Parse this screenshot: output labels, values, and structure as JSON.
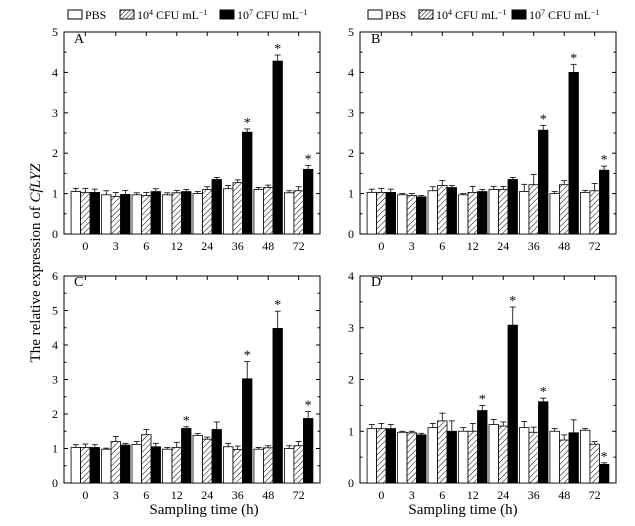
{
  "figure": {
    "ylabel_prefix": "The relative expression of ",
    "ylabel_gene": "CfLYZ",
    "xlabel": "Sampling time (h)"
  },
  "colors": {
    "pbs": "#ffffff",
    "low": "#ffffff",
    "high": "#000000",
    "axis": "#000000"
  },
  "chart_data": [
    {
      "type": "bar",
      "panel": "A",
      "categories": [
        "0",
        "3",
        "6",
        "12",
        "24",
        "36",
        "48",
        "72"
      ],
      "ylim": [
        0,
        5
      ],
      "yticks": [
        "0",
        "1",
        "2",
        "3",
        "4",
        "5"
      ],
      "legend": {
        "pbs": "PBS",
        "low_base": "10",
        "low_exp": "4",
        "low_unit": " CFU mL",
        "low_unit_exp": "−1",
        "high_base": "10",
        "high_exp": "7",
        "high_unit": " CFU mL",
        "high_unit_exp": "−1"
      },
      "series": [
        {
          "name": "PBS",
          "values": [
            1.05,
            0.97,
            0.97,
            0.97,
            1.0,
            1.12,
            1.1,
            1.02
          ],
          "errors": [
            0.08,
            0.1,
            0.05,
            0.05,
            0.05,
            0.08,
            0.05,
            0.05
          ]
        },
        {
          "name": "10^4 CFU mL-1",
          "values": [
            1.03,
            0.93,
            0.95,
            1.02,
            1.1,
            1.27,
            1.15,
            1.07
          ],
          "errors": [
            0.1,
            0.1,
            0.08,
            0.06,
            0.07,
            0.07,
            0.06,
            0.1
          ]
        },
        {
          "name": "10^7 CFU mL-1",
          "values": [
            1.03,
            0.98,
            1.05,
            1.05,
            1.35,
            2.52,
            4.28,
            1.6
          ],
          "errors": [
            0.08,
            0.1,
            0.07,
            0.05,
            0.05,
            0.08,
            0.15,
            0.1
          ]
        }
      ],
      "significant": [
        5,
        6,
        7
      ],
      "star": "*"
    },
    {
      "type": "bar",
      "panel": "B",
      "categories": [
        "0",
        "3",
        "6",
        "12",
        "24",
        "36",
        "48",
        "72"
      ],
      "ylim": [
        0,
        5
      ],
      "yticks": [
        "0",
        "1",
        "2",
        "3",
        "4",
        "5"
      ],
      "legend": {
        "pbs": "PBS",
        "low_base": "10",
        "low_exp": "4",
        "low_unit": " CFU mL",
        "low_unit_exp": "−1",
        "high_base": "10",
        "high_exp": "7",
        "high_unit": " CFU mL",
        "high_unit_exp": "−1"
      },
      "series": [
        {
          "name": "PBS",
          "values": [
            1.03,
            0.97,
            1.07,
            0.97,
            1.1,
            1.05,
            1.0,
            1.03
          ],
          "errors": [
            0.08,
            0.03,
            0.1,
            0.03,
            0.08,
            0.18,
            0.05,
            0.05
          ]
        },
        {
          "name": "10^4 CFU mL-1",
          "values": [
            1.03,
            0.95,
            1.2,
            1.03,
            1.1,
            1.22,
            1.22,
            1.07
          ],
          "errors": [
            0.1,
            0.05,
            0.12,
            0.15,
            0.08,
            0.25,
            0.1,
            0.18
          ]
        },
        {
          "name": "10^7 CFU mL-1",
          "values": [
            1.03,
            0.92,
            1.15,
            1.05,
            1.35,
            2.57,
            4.0,
            1.58
          ],
          "errors": [
            0.08,
            0.03,
            0.05,
            0.05,
            0.05,
            0.12,
            0.2,
            0.1
          ]
        }
      ],
      "significant": [
        5,
        6,
        7
      ],
      "star": "*"
    },
    {
      "type": "bar",
      "panel": "C",
      "categories": [
        "0",
        "3",
        "6",
        "12",
        "24",
        "36",
        "48",
        "72"
      ],
      "ylim": [
        0,
        6
      ],
      "yticks": [
        "0",
        "1",
        "2",
        "3",
        "4",
        "5",
        "6"
      ],
      "series": [
        {
          "name": "PBS",
          "values": [
            1.03,
            0.98,
            1.12,
            0.98,
            1.38,
            1.05,
            0.98,
            1.0
          ],
          "errors": [
            0.08,
            0.03,
            0.08,
            0.05,
            0.05,
            0.1,
            0.05,
            0.08
          ]
        },
        {
          "name": "10^4 CFU mL-1",
          "values": [
            1.03,
            1.2,
            1.4,
            1.03,
            1.27,
            0.97,
            1.02,
            1.08
          ],
          "errors": [
            0.1,
            0.15,
            0.15,
            0.15,
            0.06,
            0.1,
            0.06,
            0.12
          ]
        },
        {
          "name": "10^7 CFU mL-1",
          "values": [
            1.03,
            1.1,
            1.05,
            1.58,
            1.55,
            3.02,
            4.48,
            1.87
          ],
          "errors": [
            0.08,
            0.05,
            0.1,
            0.05,
            0.22,
            0.5,
            0.5,
            0.2
          ]
        }
      ],
      "significant": [
        3,
        5,
        6,
        7
      ],
      "star": "*"
    },
    {
      "type": "bar",
      "panel": "D",
      "categories": [
        "0",
        "3",
        "6",
        "12",
        "24",
        "36",
        "48",
        "72"
      ],
      "ylim": [
        0,
        4
      ],
      "yticks": [
        "0",
        "1",
        "2",
        "3",
        "4"
      ],
      "series": [
        {
          "name": "PBS",
          "values": [
            1.05,
            0.98,
            1.07,
            1.0,
            1.13,
            1.07,
            1.0,
            1.02
          ],
          "errors": [
            0.08,
            0.02,
            0.08,
            0.07,
            0.1,
            0.12,
            0.05,
            0.03
          ]
        },
        {
          "name": "10^4 CFU mL-1",
          "values": [
            1.05,
            0.97,
            1.2,
            1.0,
            1.1,
            0.98,
            0.83,
            0.75
          ],
          "errors": [
            0.1,
            0.03,
            0.15,
            0.15,
            0.08,
            0.1,
            0.1,
            0.05
          ]
        },
        {
          "name": "10^7 CFU mL-1",
          "values": [
            1.05,
            0.93,
            1.0,
            1.4,
            3.05,
            1.57,
            0.97,
            0.36
          ],
          "errors": [
            0.08,
            0.03,
            0.2,
            0.1,
            0.35,
            0.07,
            0.25,
            0.03
          ]
        }
      ],
      "significant": [
        3,
        4,
        5,
        7
      ],
      "star": "*"
    }
  ]
}
